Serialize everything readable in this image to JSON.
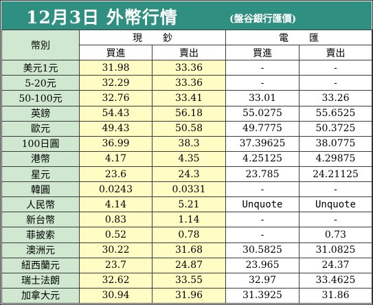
{
  "header": {
    "title": "12月3日 外幣行情",
    "source": "(盤谷銀行匯價)"
  },
  "table": {
    "currency_header": "幣別",
    "cash_header": "現鈔",
    "wire_header": "電匯",
    "buy_label": "買進",
    "sell_label": "賣出",
    "rows": [
      {
        "currency": "美元1元",
        "cash_buy": "31.98",
        "cash_sell": "33.36",
        "wire_buy": "-",
        "wire_sell": "-"
      },
      {
        "currency": "5-20元",
        "cash_buy": "32.29",
        "cash_sell": "33.36",
        "wire_buy": "-",
        "wire_sell": "-"
      },
      {
        "currency": "50-100元",
        "cash_buy": "32.76",
        "cash_sell": "33.41",
        "wire_buy": "33.01",
        "wire_sell": "33.26"
      },
      {
        "currency": "英鎊",
        "cash_buy": "54.43",
        "cash_sell": "56.18",
        "wire_buy": "55.0275",
        "wire_sell": "55.6525"
      },
      {
        "currency": "歐元",
        "cash_buy": "49.43",
        "cash_sell": "50.58",
        "wire_buy": "49.7775",
        "wire_sell": "50.3725"
      },
      {
        "currency": "100日圓",
        "cash_buy": "36.99",
        "cash_sell": "38.3",
        "wire_buy": "37.39625",
        "wire_sell": "38.0775"
      },
      {
        "currency": "港幣",
        "cash_buy": "4.17",
        "cash_sell": "4.35",
        "wire_buy": "4.25125",
        "wire_sell": "4.29875"
      },
      {
        "currency": "星元",
        "cash_buy": "23.6",
        "cash_sell": "24.3",
        "wire_buy": "23.785",
        "wire_sell": "24.21125"
      },
      {
        "currency": "韓圓",
        "cash_buy": "0.0243",
        "cash_sell": "0.0331",
        "wire_buy": "-",
        "wire_sell": "-"
      },
      {
        "currency": "人民幣",
        "cash_buy": "4.14",
        "cash_sell": "5.21",
        "wire_buy": "Unquote",
        "wire_sell": "Unquote"
      },
      {
        "currency": "新台幣",
        "cash_buy": "0.83",
        "cash_sell": "1.14",
        "wire_buy": "-",
        "wire_sell": "-"
      },
      {
        "currency": "菲披索",
        "cash_buy": "0.52",
        "cash_sell": "0.78",
        "wire_buy": "-",
        "wire_sell": "0.73"
      },
      {
        "currency": "澳洲元",
        "cash_buy": "30.22",
        "cash_sell": "31.68",
        "wire_buy": "30.5825",
        "wire_sell": "31.0825"
      },
      {
        "currency": "紐西蘭元",
        "cash_buy": "23.7",
        "cash_sell": "24.87",
        "wire_buy": "23.965",
        "wire_sell": "24.37"
      },
      {
        "currency": "瑞士法朗",
        "cash_buy": "32.62",
        "cash_sell": "33.55",
        "wire_buy": "32.97",
        "wire_sell": "33.4625"
      },
      {
        "currency": "加拿大元",
        "cash_buy": "30.94",
        "cash_sell": "31.96",
        "wire_buy": "31.3925",
        "wire_sell": "31.86"
      }
    ]
  }
}
